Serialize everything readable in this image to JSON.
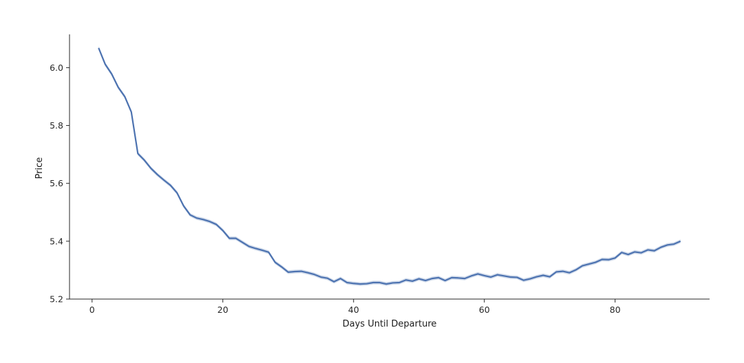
{
  "chart_data": {
    "type": "line",
    "title": "",
    "xlabel": "Days Until Departure",
    "ylabel": "Price",
    "xlim": [
      -3.45,
      94.45
    ],
    "ylim": [
      5.2,
      6.115
    ],
    "xticks": [
      0,
      20,
      40,
      60,
      80
    ],
    "yticks": [
      5.2,
      5.4,
      5.6,
      5.8,
      6.0
    ],
    "ytick_labels": [
      "5.2",
      "5.4",
      "5.6",
      "5.8",
      "6.0"
    ],
    "grid": false,
    "legend": "none",
    "colors": {
      "line": "#4c72b0",
      "band": "#4c72b0"
    },
    "series": [
      {
        "x": [
          1,
          2,
          3,
          4,
          5,
          6,
          7,
          8,
          9,
          10,
          11,
          12,
          13,
          14,
          15,
          16,
          17,
          18,
          19,
          20,
          21,
          22,
          23,
          24,
          25,
          26,
          27,
          28,
          29,
          30,
          31,
          32,
          33,
          34,
          35,
          36,
          37,
          38,
          39,
          40,
          41,
          42,
          43,
          44,
          45,
          46,
          47,
          48,
          49,
          50,
          51,
          52,
          53,
          54,
          55,
          56,
          57,
          58,
          59,
          60,
          61,
          62,
          63,
          64,
          65,
          66,
          67,
          68,
          69,
          70,
          71,
          72,
          73,
          74,
          75,
          76,
          77,
          78,
          79,
          80,
          81,
          82,
          83,
          84,
          85,
          86,
          87,
          88,
          89,
          90
        ],
        "y": [
          6.068,
          6.012,
          5.978,
          5.932,
          5.9,
          5.847,
          5.703,
          5.68,
          5.652,
          5.63,
          5.611,
          5.593,
          5.567,
          5.522,
          5.491,
          5.48,
          5.475,
          5.468,
          5.458,
          5.437,
          5.41,
          5.41,
          5.396,
          5.382,
          5.375,
          5.369,
          5.362,
          5.327,
          5.311,
          5.293,
          5.295,
          5.296,
          5.291,
          5.285,
          5.276,
          5.272,
          5.26,
          5.271,
          5.257,
          5.254,
          5.252,
          5.253,
          5.257,
          5.257,
          5.252,
          5.256,
          5.257,
          5.266,
          5.262,
          5.27,
          5.264,
          5.271,
          5.274,
          5.264,
          5.274,
          5.273,
          5.271,
          5.28,
          5.287,
          5.281,
          5.276,
          5.284,
          5.28,
          5.276,
          5.275,
          5.265,
          5.27,
          5.277,
          5.282,
          5.277,
          5.294,
          5.296,
          5.291,
          5.301,
          5.315,
          5.321,
          5.327,
          5.337,
          5.336,
          5.342,
          5.361,
          5.354,
          5.363,
          5.36,
          5.37,
          5.367,
          5.379,
          5.387,
          5.39,
          5.4
        ],
        "ci_half_width": 0.0065
      }
    ]
  }
}
